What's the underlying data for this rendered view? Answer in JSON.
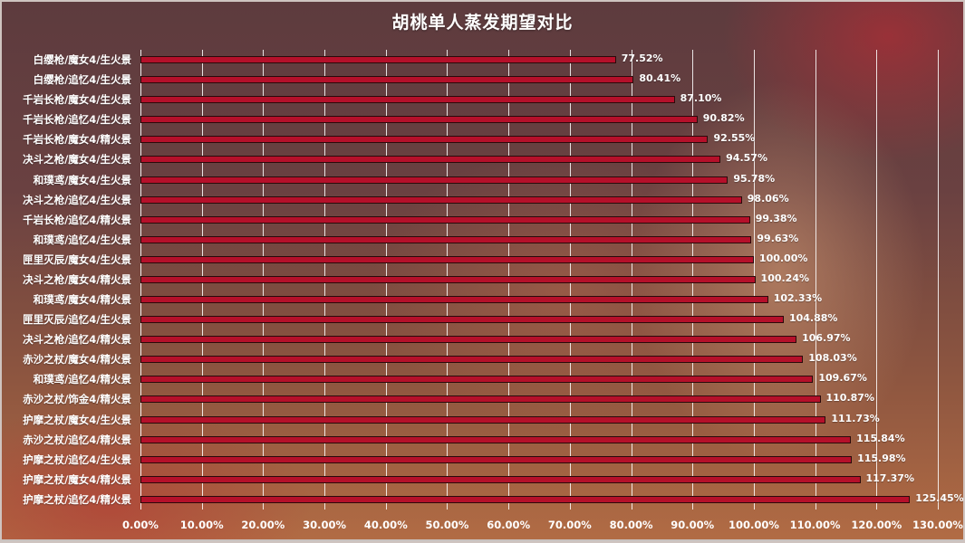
{
  "title": "胡桃单人蒸发期望对比",
  "colors": {
    "bar": "#b5102a",
    "bar_border": "#2a0a0a",
    "text": "#ffffff",
    "grid": "#ffffff"
  },
  "chart_data": {
    "type": "bar",
    "orientation": "horizontal",
    "title": "胡桃单人蒸发期望对比",
    "xlabel": "",
    "ylabel": "",
    "xlim": [
      0,
      130
    ],
    "x_ticks": [
      "0.00%",
      "10.00%",
      "20.00%",
      "30.00%",
      "40.00%",
      "50.00%",
      "60.00%",
      "70.00%",
      "80.00%",
      "90.00%",
      "100.00%",
      "110.00%",
      "120.00%",
      "130.00%"
    ],
    "grid": "vertical",
    "legend": "none",
    "categories": [
      "白缨枪/魔女4/生火景",
      "白缨枪/追忆4/生火景",
      "千岩长枪/魔女4/生火景",
      "千岩长枪/追忆4/生火景",
      "千岩长枪/魔女4/精火景",
      "决斗之枪/魔女4/生火景",
      "和璞鸢/魔女4/生火景",
      "决斗之枪/追忆4/生火景",
      "千岩长枪/追忆4/精火景",
      "和璞鸢/追忆4/生火景",
      "匣里灭辰/魔女4/生火景",
      "决斗之枪/魔女4/精火景",
      "和璞鸢/魔女4/精火景",
      "匣里灭辰/追忆4/生火景",
      "决斗之枪/追忆4/精火景",
      "赤沙之杖/魔女4/精火景",
      "和璞鸢/追忆4/精火景",
      "赤沙之杖/饰金4/精火景",
      "护摩之杖/魔女4/生火景",
      "赤沙之杖/追忆4/精火景",
      "护摩之杖/追忆4/生火景",
      "护摩之杖/魔女4/精火景",
      "护摩之杖/追忆4/精火景"
    ],
    "values": [
      77.52,
      80.41,
      87.1,
      90.82,
      92.55,
      94.57,
      95.78,
      98.06,
      99.38,
      99.63,
      100.0,
      100.24,
      102.33,
      104.88,
      106.97,
      108.03,
      109.67,
      110.87,
      111.73,
      115.84,
      115.98,
      117.37,
      125.45
    ],
    "value_labels": [
      "77.52%",
      "80.41%",
      "87.10%",
      "90.82%",
      "92.55%",
      "94.57%",
      "95.78%",
      "98.06%",
      "99.38%",
      "99.63%",
      "100.00%",
      "100.24%",
      "102.33%",
      "104.88%",
      "106.97%",
      "108.03%",
      "109.67%",
      "110.87%",
      "111.73%",
      "115.84%",
      "115.98%",
      "117.37%",
      "125.45%"
    ]
  }
}
